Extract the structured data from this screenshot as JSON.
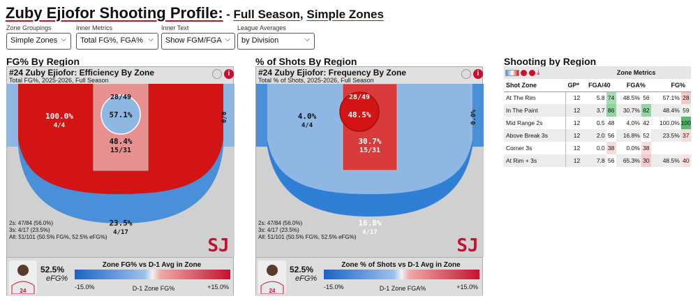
{
  "header": {
    "title": "Zuby Ejiofor Shooting Profile:",
    "subtitle_dash": "- ",
    "subtitle_a": "Full Season",
    "subtitle_sep": ", ",
    "subtitle_b": "Simple Zones"
  },
  "controls": [
    {
      "label": "Zone Groupings",
      "value": "Simple Zones"
    },
    {
      "label": "Inner Metrics",
      "value": "Total FG%, FGA%"
    },
    {
      "label": "Inner Text",
      "value": "Show FGM/FGA"
    },
    {
      "label": "League Averages",
      "value": "by Division"
    }
  ],
  "sections": {
    "fg": "FG% By Region",
    "shots": "% of Shots By Region",
    "table": "Shooting by Region"
  },
  "panel_fg": {
    "title": "#24 Zuby Ejiofor: Efficiency By Zone",
    "subtitle": "Total FG%, 2025-2026, Full Season",
    "rim_frac": "28/49",
    "rim_pct": "57.1%",
    "paint_pct": "48.4%",
    "paint_frac": "15/31",
    "mid_pct": "100.0%",
    "mid_frac": "4/4",
    "corner": "0/0",
    "three_pct": "23.5%",
    "three_frac": "4/17",
    "stats": [
      "2s: 47/84 (56.0%)",
      "3s: 4/17 (23.5%)",
      "All: 51/101 (50.5% FG%, 52.5% eFG%)"
    ],
    "efg_value": "52.5%",
    "efg_label": "eFG%",
    "bar_title": "Zone FG% vs D-1 Avg in Zone",
    "bar_low": "-15.0%",
    "bar_mid": "D-1 Zone FG%",
    "bar_high": "+15.0%",
    "logo": "SJ"
  },
  "panel_shots": {
    "title": "#24 Zuby Ejiofor: Frequency By Zone",
    "subtitle": "Total % of Shots, 2025-2026, Full Season",
    "rim_frac": "28/49",
    "rim_pct": "48.5%",
    "paint_pct": "30.7%",
    "paint_frac": "15/31",
    "mid_pct": "4.0%",
    "mid_frac": "4/4",
    "corner": "0.0%",
    "three_pct": "16.8%",
    "three_frac": "4/17",
    "stats": [
      "2s: 47/84 (56.0%)",
      "3s: 4/17 (23.5%)",
      "All: 51/101 (50.5% FG%, 52.5% eFG%)"
    ],
    "efg_value": "52.5%",
    "efg_label": "eFG%",
    "bar_title": "Zone % of Shots vs D-1 Avg in Zone",
    "bar_low": "-15.0%",
    "bar_mid": "D-1 Zone FGA%",
    "bar_high": "+15.0%",
    "logo": "SJ",
    "jersey": "24"
  },
  "table": {
    "group_header": "Zone Metrics",
    "columns": [
      "Shot Zone",
      "GP*",
      "FGA/40",
      "FGA%",
      "FG%"
    ],
    "rows": [
      {
        "zone": "At The Rim",
        "gp": "12",
        "fga40": "5.8",
        "fga40_r": "74",
        "fgap": "48.5%",
        "fgap_r": "56",
        "fg": "57.1%",
        "fg_r": "28",
        "c1": "#a8dcb4",
        "c2": "#ffffff",
        "c3": "#f6c9c9"
      },
      {
        "zone": "In The Paint",
        "gp": "12",
        "fga40": "3.7",
        "fga40_r": "86",
        "fgap": "30.7%",
        "fgap_r": "82",
        "fg": "48.4%",
        "fg_r": "59",
        "c1": "#8fd39f",
        "c2": "#93d5a3",
        "c3": "#eaf6ec"
      },
      {
        "zone": "Mid Range 2s",
        "gp": "12",
        "fga40": "0.5",
        "fga40_r": "48",
        "fgap": "4.0%",
        "fgap_r": "42",
        "fg": "100.0%",
        "fg_r": "100",
        "c1": "#ffffff",
        "c2": "#ffffff",
        "c3": "#5ab872"
      },
      {
        "zone": "Above Break 3s",
        "gp": "12",
        "fga40": "2.0",
        "fga40_r": "56",
        "fgap": "16.8%",
        "fgap_r": "52",
        "fg": "23.5%",
        "fg_r": "37",
        "c1": "#ffffff",
        "c2": "#ffffff",
        "c3": "#f8dada"
      },
      {
        "zone": "Corner 3s",
        "gp": "12",
        "fga40": "0.0",
        "fga40_r": "38",
        "fgap": "0.0%",
        "fgap_r": "38",
        "fg": "",
        "fg_r": "",
        "c1": "#f8dada",
        "c2": "#f8dada",
        "c3": "transparent"
      },
      {
        "zone": "At Rim + 3s",
        "gp": "12",
        "fga40": "7.8",
        "fga40_r": "56",
        "fgap": "65.3%",
        "fgap_r": "30",
        "fg": "48.5%",
        "fg_r": "40",
        "c1": "#ffffff",
        "c2": "#f6c9c9",
        "c3": "#fbe0e0"
      }
    ]
  },
  "colors": {
    "accent": "#c8102e",
    "hot_red": "#d21414",
    "cold_blue": "#4a90d9",
    "light_blue": "#8fb7e3",
    "pink": "#e8908f",
    "mid_blue": "#6aa3e0"
  }
}
